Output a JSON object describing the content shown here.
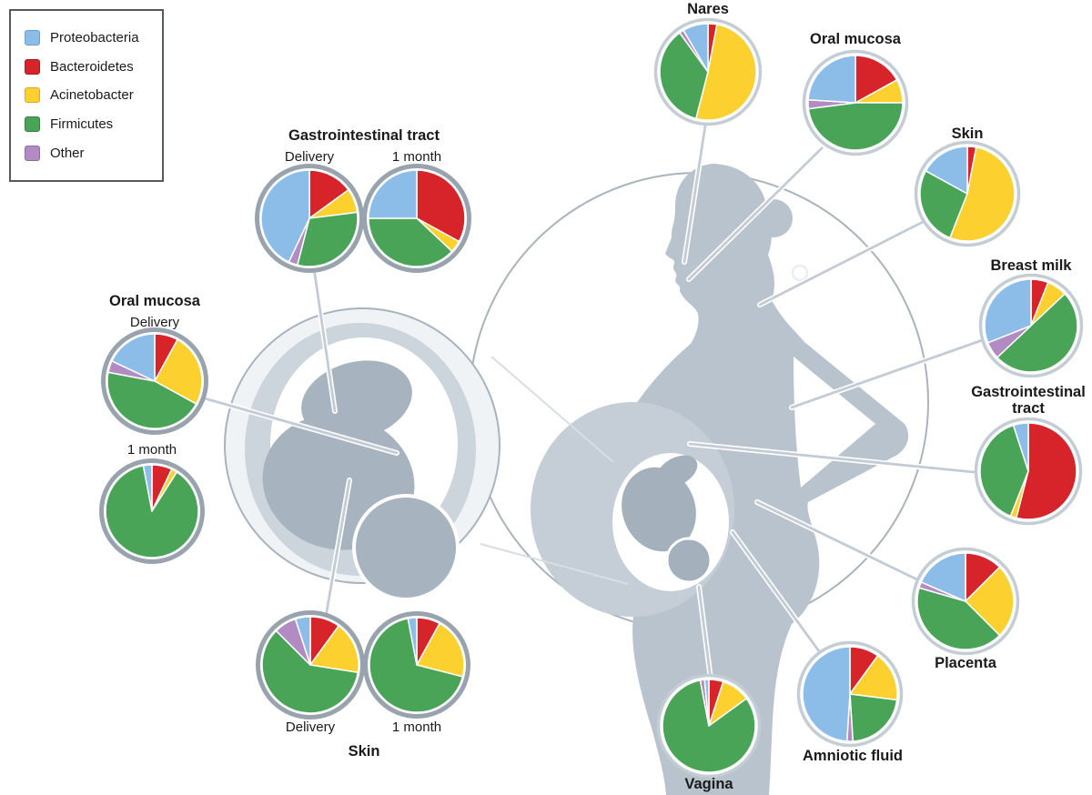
{
  "legend": {
    "items": [
      {
        "label": "Proteobacteria",
        "color": "#8cbde8",
        "border": "#6e9cc6"
      },
      {
        "label": "Bacteroidetes",
        "color": "#d7232a",
        "border": "#a61b20"
      },
      {
        "label": "Acinetobacter",
        "color": "#fcd02f",
        "border": "#d4ab22"
      },
      {
        "label": "Firmicutes",
        "color": "#4aa457",
        "border": "#35823f"
      },
      {
        "label": "Other",
        "color": "#b28bc3",
        "border": "#90699f"
      }
    ]
  },
  "sites": {
    "gi_infant": {
      "title": "Gastrointestinal tract",
      "col1": "Delivery",
      "col2": "1 month"
    },
    "oral_infant": {
      "title": "Oral mucosa",
      "col1": "Delivery",
      "col2": "1 month"
    },
    "skin_infant": {
      "title": "Skin",
      "col1": "Delivery",
      "col2": "1 month"
    },
    "nares": {
      "title": "Nares"
    },
    "oral_mother": {
      "title": "Oral mucosa"
    },
    "skin_mother": {
      "title": "Skin"
    },
    "breast_milk": {
      "title": "Breast milk"
    },
    "gi_mother": {
      "title": "Gastrointestinal tract"
    },
    "placenta": {
      "title": "Placenta"
    },
    "amniotic": {
      "title": "Amniotic fluid"
    },
    "vagina": {
      "title": "Vagina"
    }
  },
  "chart_data": {
    "type": "pie",
    "unit": "percent (estimated from figure)",
    "categories": [
      "Proteobacteria",
      "Bacteroidetes",
      "Acinetobacter",
      "Firmicutes",
      "Other"
    ],
    "colors": {
      "Proteobacteria": "#8cbde8",
      "Bacteroidetes": "#d7232a",
      "Acinetobacter": "#fcd02f",
      "Firmicutes": "#4aa457",
      "Other": "#b28bc3"
    },
    "slice_order": "clockwise from 12 o'clock",
    "pies": [
      {
        "id": "nares",
        "site": "Nares",
        "subject": "mother",
        "slices": [
          {
            "category": "Bacteroidetes",
            "value": 3
          },
          {
            "category": "Acinetobacter",
            "value": 51
          },
          {
            "category": "Firmicutes",
            "value": 36
          },
          {
            "category": "Other",
            "value": 1.5
          },
          {
            "category": "Proteobacteria",
            "value": 8.5
          }
        ]
      },
      {
        "id": "oral-mother",
        "site": "Oral mucosa",
        "subject": "mother",
        "slices": [
          {
            "category": "Bacteroidetes",
            "value": 17
          },
          {
            "category": "Acinetobacter",
            "value": 8
          },
          {
            "category": "Firmicutes",
            "value": 48
          },
          {
            "category": "Other",
            "value": 3
          },
          {
            "category": "Proteobacteria",
            "value": 24
          }
        ]
      },
      {
        "id": "skin-mother",
        "site": "Skin",
        "subject": "mother",
        "slices": [
          {
            "category": "Bacteroidetes",
            "value": 3
          },
          {
            "category": "Acinetobacter",
            "value": 53
          },
          {
            "category": "Firmicutes",
            "value": 27
          },
          {
            "category": "Proteobacteria",
            "value": 17
          }
        ]
      },
      {
        "id": "breast-milk",
        "site": "Breast milk",
        "subject": "mother",
        "slices": [
          {
            "category": "Bacteroidetes",
            "value": 6
          },
          {
            "category": "Acinetobacter",
            "value": 7
          },
          {
            "category": "Firmicutes",
            "value": 50
          },
          {
            "category": "Other",
            "value": 6
          },
          {
            "category": "Proteobacteria",
            "value": 31
          }
        ]
      },
      {
        "id": "gi-mother",
        "site": "Gastrointestinal tract",
        "subject": "mother",
        "slices": [
          {
            "category": "Bacteroidetes",
            "value": 54
          },
          {
            "category": "Acinetobacter",
            "value": 2
          },
          {
            "category": "Firmicutes",
            "value": 39
          },
          {
            "category": "Proteobacteria",
            "value": 5
          }
        ]
      },
      {
        "id": "placenta",
        "site": "Placenta",
        "subject": "mother",
        "slices": [
          {
            "category": "Bacteroidetes",
            "value": 12.5
          },
          {
            "category": "Acinetobacter",
            "value": 25
          },
          {
            "category": "Firmicutes",
            "value": 42
          },
          {
            "category": "Other",
            "value": 2
          },
          {
            "category": "Proteobacteria",
            "value": 18.5
          }
        ]
      },
      {
        "id": "amniotic",
        "site": "Amniotic fluid",
        "subject": "mother",
        "slices": [
          {
            "category": "Bacteroidetes",
            "value": 10
          },
          {
            "category": "Acinetobacter",
            "value": 17
          },
          {
            "category": "Firmicutes",
            "value": 22
          },
          {
            "category": "Other",
            "value": 2
          },
          {
            "category": "Proteobacteria",
            "value": 49
          }
        ]
      },
      {
        "id": "vagina",
        "site": "Vagina",
        "subject": "mother",
        "slices": [
          {
            "category": "Bacteroidetes",
            "value": 5
          },
          {
            "category": "Acinetobacter",
            "value": 10
          },
          {
            "category": "Firmicutes",
            "value": 82
          },
          {
            "category": "Other",
            "value": 1.5
          },
          {
            "category": "Proteobacteria",
            "value": 1.5
          }
        ]
      },
      {
        "id": "gi-delivery",
        "site": "Gastrointestinal tract",
        "subject": "infant",
        "timepoint": "Delivery",
        "slices": [
          {
            "category": "Bacteroidetes",
            "value": 15
          },
          {
            "category": "Acinetobacter",
            "value": 8
          },
          {
            "category": "Firmicutes",
            "value": 31
          },
          {
            "category": "Other",
            "value": 3
          },
          {
            "category": "Proteobacteria",
            "value": 43
          }
        ]
      },
      {
        "id": "gi-1month",
        "site": "Gastrointestinal tract",
        "subject": "infant",
        "timepoint": "1 month",
        "slices": [
          {
            "category": "Bacteroidetes",
            "value": 33
          },
          {
            "category": "Acinetobacter",
            "value": 4
          },
          {
            "category": "Firmicutes",
            "value": 38
          },
          {
            "category": "Proteobacteria",
            "value": 25
          }
        ]
      },
      {
        "id": "oral-delivery",
        "site": "Oral mucosa",
        "subject": "infant",
        "timepoint": "Delivery",
        "slices": [
          {
            "category": "Bacteroidetes",
            "value": 8
          },
          {
            "category": "Acinetobacter",
            "value": 25
          },
          {
            "category": "Firmicutes",
            "value": 45
          },
          {
            "category": "Other",
            "value": 4
          },
          {
            "category": "Proteobacteria",
            "value": 18
          }
        ]
      },
      {
        "id": "oral-1month",
        "site": "Oral mucosa",
        "subject": "infant",
        "timepoint": "1 month",
        "slices": [
          {
            "category": "Bacteroidetes",
            "value": 7
          },
          {
            "category": "Acinetobacter",
            "value": 2
          },
          {
            "category": "Firmicutes",
            "value": 88
          },
          {
            "category": "Proteobacteria",
            "value": 3
          }
        ]
      },
      {
        "id": "skin-delivery",
        "site": "Skin",
        "subject": "infant",
        "timepoint": "Delivery",
        "slices": [
          {
            "category": "Bacteroidetes",
            "value": 10
          },
          {
            "category": "Acinetobacter",
            "value": 17.5
          },
          {
            "category": "Firmicutes",
            "value": 60
          },
          {
            "category": "Other",
            "value": 7.5
          },
          {
            "category": "Proteobacteria",
            "value": 5
          }
        ]
      },
      {
        "id": "skin-1month",
        "site": "Skin",
        "subject": "infant",
        "timepoint": "1 month",
        "slices": [
          {
            "category": "Bacteroidetes",
            "value": 8
          },
          {
            "category": "Acinetobacter",
            "value": 21
          },
          {
            "category": "Firmicutes",
            "value": 68
          },
          {
            "category": "Proteobacteria",
            "value": 3
          }
        ]
      }
    ]
  }
}
